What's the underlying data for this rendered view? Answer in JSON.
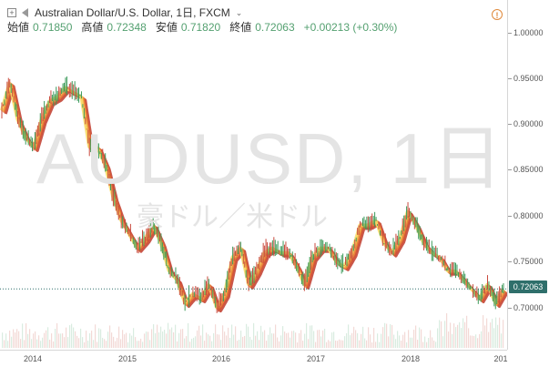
{
  "symbol_bar": {
    "title": "Australian Dollar/U.S. Dollar, 1日, FXCM",
    "caret": "⌄"
  },
  "ohlc": {
    "open_label": "始値",
    "open": "0.71850",
    "high_label": "高値",
    "high": "0.72348",
    "low_label": "安値",
    "low": "0.71820",
    "close_label": "終値",
    "close": "0.72063",
    "change": "+0.00213 (+0.30%)"
  },
  "watermark": {
    "symbol": "AUDUSD, 1日",
    "description": "豪ドル／米ドル"
  },
  "price_axis": {
    "ticks": [
      "1.00000",
      "0.95000",
      "0.90000",
      "0.85000",
      "0.80000",
      "0.75000",
      "0.70000"
    ],
    "current_price": "0.72063"
  },
  "time_axis": {
    "ticks": [
      "2014",
      "2015",
      "2016",
      "2017",
      "2018",
      "201"
    ]
  },
  "colors": {
    "ribbon_outer": "#c0392b",
    "ribbon_mid": "#e8883a",
    "ribbon_inner": "#f7dd6a",
    "candle_up": "#3c9a5a",
    "candle_down": "#c94a3d",
    "price_tag": "#2f6f6b",
    "change_text": "#54a070"
  },
  "chart_data": {
    "type": "line",
    "title": "AUDUSD, 1日",
    "x": [
      "2013-10",
      "2013-11",
      "2013-12",
      "2014-01",
      "2014-02",
      "2014-03",
      "2014-04",
      "2014-05",
      "2014-06",
      "2014-07",
      "2014-08",
      "2014-09",
      "2014-10",
      "2014-11",
      "2014-12",
      "2015-01",
      "2015-02",
      "2015-03",
      "2015-04",
      "2015-05",
      "2015-06",
      "2015-07",
      "2015-08",
      "2015-09",
      "2015-10",
      "2015-11",
      "2015-12",
      "2016-01",
      "2016-02",
      "2016-03",
      "2016-04",
      "2016-05",
      "2016-06",
      "2016-07",
      "2016-08",
      "2016-09",
      "2016-10",
      "2016-11",
      "2016-12",
      "2017-01",
      "2017-02",
      "2017-03",
      "2017-04",
      "2017-05",
      "2017-06",
      "2017-07",
      "2017-08",
      "2017-09",
      "2017-10",
      "2017-11",
      "2017-12",
      "2018-01",
      "2018-02",
      "2018-03",
      "2018-04",
      "2018-05",
      "2018-06",
      "2018-07",
      "2018-08",
      "2018-09",
      "2018-10",
      "2018-11",
      "2018-12",
      "2019-01"
    ],
    "series": [
      {
        "values": [
          0.915,
          0.945,
          0.905,
          0.885,
          0.875,
          0.905,
          0.925,
          0.93,
          0.94,
          0.935,
          0.93,
          0.875,
          0.875,
          0.855,
          0.82,
          0.795,
          0.78,
          0.765,
          0.775,
          0.79,
          0.77,
          0.74,
          0.73,
          0.705,
          0.715,
          0.71,
          0.725,
          0.7,
          0.715,
          0.755,
          0.765,
          0.725,
          0.74,
          0.76,
          0.765,
          0.76,
          0.76,
          0.745,
          0.725,
          0.755,
          0.765,
          0.765,
          0.75,
          0.745,
          0.76,
          0.79,
          0.79,
          0.795,
          0.77,
          0.76,
          0.775,
          0.805,
          0.79,
          0.77,
          0.76,
          0.755,
          0.74,
          0.74,
          0.73,
          0.72,
          0.71,
          0.725,
          0.705,
          0.72
        ]
      }
    ],
    "ylim": [
      0.66,
      1.015
    ],
    "grid": false,
    "legend": "none"
  }
}
